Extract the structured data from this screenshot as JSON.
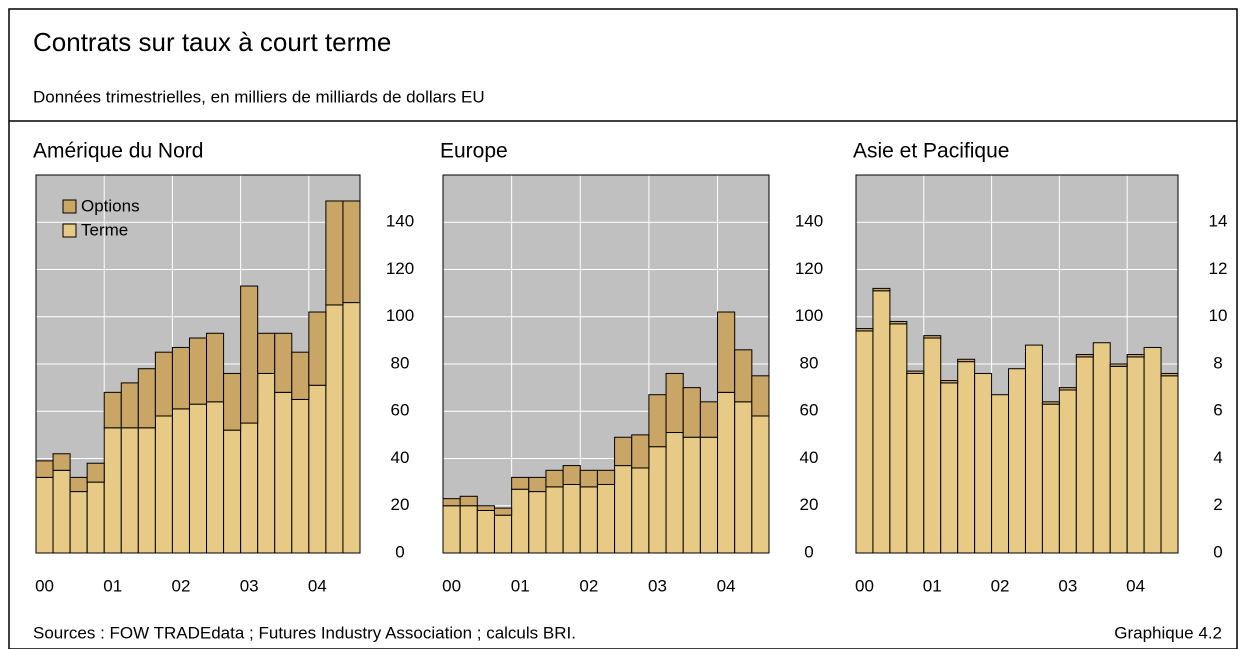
{
  "header": {
    "title": "Contrats sur taux à court terme",
    "subtitle": "Données trimestrielles, en milliers de milliards de dollars EU"
  },
  "footer": {
    "source": "Sources : FOW TRADEdata ; Futures Industry Association ; calculs BRI.",
    "figure": "Graphique 4.2"
  },
  "chart_data": [
    {
      "type": "bar",
      "stacked": true,
      "title": "Amérique du Nord",
      "legend": "upper left",
      "categories": [
        "00",
        null,
        null,
        null,
        "01",
        null,
        null,
        null,
        "02",
        null,
        null,
        null,
        "03",
        null,
        null,
        null,
        "04",
        null,
        null
      ],
      "series": [
        {
          "name": "Terme",
          "color": "#e6ca85",
          "values": [
            32,
            35,
            26,
            30,
            53,
            53,
            53,
            58,
            61,
            63,
            64,
            52,
            55,
            76,
            68,
            65,
            71,
            105,
            106
          ]
        },
        {
          "name": "Options",
          "color": "#c9a566",
          "values": [
            7,
            7,
            6,
            8,
            15,
            19,
            25,
            27,
            26,
            28,
            29,
            24,
            58,
            17,
            25,
            20,
            31,
            44,
            43
          ]
        }
      ],
      "ylim": [
        0,
        160
      ],
      "yticks": [
        0,
        20,
        40,
        60,
        80,
        100,
        120,
        140
      ],
      "grid": true
    },
    {
      "type": "bar",
      "stacked": true,
      "title": "Europe",
      "categories": [
        "00",
        null,
        null,
        null,
        "01",
        null,
        null,
        null,
        "02",
        null,
        null,
        null,
        "03",
        null,
        null,
        null,
        "04",
        null,
        null
      ],
      "series": [
        {
          "color": "#e6ca85",
          "values": [
            20,
            20,
            18,
            16,
            27,
            26,
            28,
            29,
            28,
            29,
            37,
            36,
            45,
            51,
            49,
            49,
            68,
            64,
            58
          ]
        },
        {
          "color": "#c9a566",
          "values": [
            3,
            4,
            2,
            3,
            5,
            6,
            7,
            8,
            7,
            6,
            12,
            14,
            22,
            25,
            21,
            15,
            34,
            22,
            17
          ]
        }
      ],
      "ylim": [
        0,
        160
      ],
      "yticks": [
        0,
        20,
        40,
        60,
        80,
        100,
        120,
        140
      ],
      "grid": true
    },
    {
      "type": "bar",
      "stacked": true,
      "title": "Asie et Pacifique",
      "categories": [
        "00",
        null,
        null,
        null,
        "01",
        null,
        null,
        null,
        "02",
        null,
        null,
        null,
        "03",
        null,
        null,
        null,
        "04",
        null,
        null
      ],
      "series": [
        {
          "color": "#e6ca85",
          "values": [
            9.4,
            11.1,
            9.7,
            7.6,
            9.1,
            7.2,
            8.1,
            7.6,
            6.7,
            7.8,
            8.8,
            6.3,
            6.9,
            8.3,
            8.9,
            7.9,
            8.3,
            8.7,
            7.5
          ]
        },
        {
          "color": "#c9a566",
          "values": [
            0.1,
            0.1,
            0.1,
            0.1,
            0.1,
            0.1,
            0.1,
            0,
            0,
            0,
            0,
            0.1,
            0.1,
            0.1,
            0,
            0.1,
            0.1,
            0,
            0.1
          ]
        }
      ],
      "ylim": [
        0,
        16
      ],
      "yticks": [
        0,
        2,
        4,
        6,
        8,
        10,
        12,
        14
      ],
      "grid": true
    }
  ]
}
